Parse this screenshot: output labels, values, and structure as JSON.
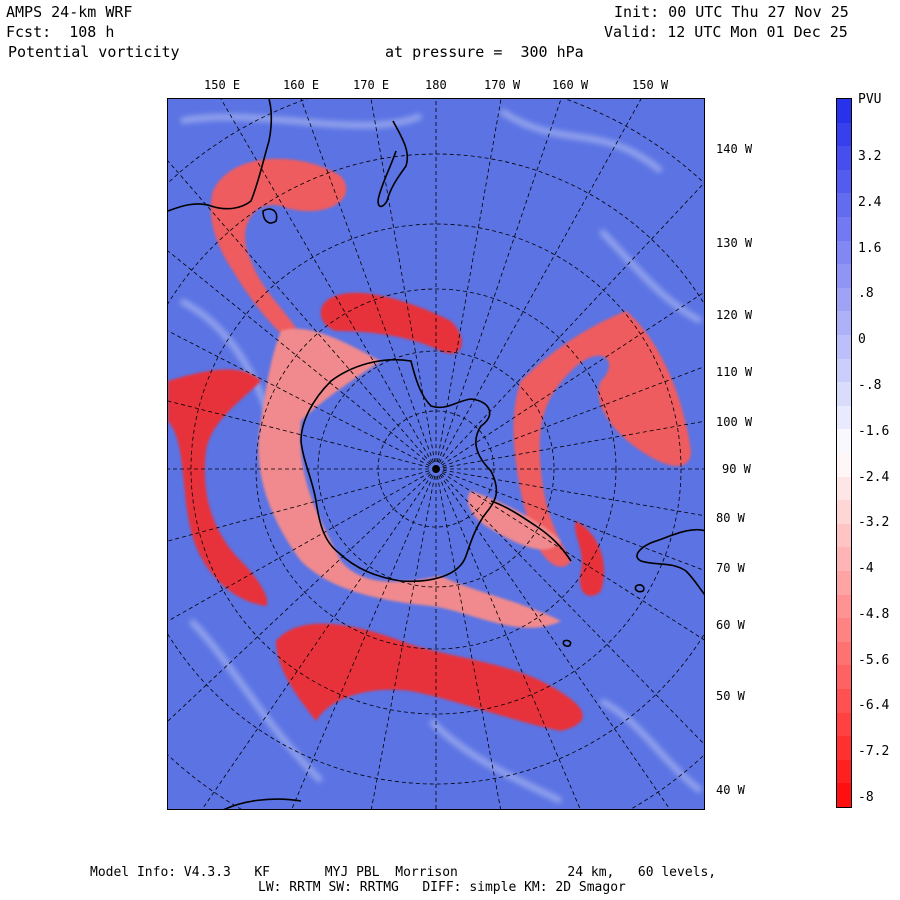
{
  "header": {
    "model": "AMPS 24-km WRF",
    "forecast": "Fcst:  108 h",
    "field": "Potential vorticity",
    "init": "Init: 00 UTC Thu 27 Nov 25",
    "valid": "Valid: 12 UTC Mon 01 Dec 25",
    "level": "at pressure =  300 hPa"
  },
  "map": {
    "projection": "polar stereographic (south pole)",
    "top_lon_labels": [
      "150 E",
      "160 E",
      "170 E",
      "180",
      "170 W",
      "160 W",
      "150 W"
    ],
    "right_lon_labels": [
      "140 W",
      "130 W",
      "120 W",
      "110 W",
      "100 W",
      "90 W",
      "80 W",
      "70 W",
      "60 W",
      "50 W",
      "40 W"
    ],
    "colors": {
      "ocean_blue": "#5b73e3",
      "pv_red": "#e8303a",
      "coast": "#000000"
    }
  },
  "colorbar": {
    "unit": "PVU",
    "ticks": [
      "3.2",
      "2.4",
      "1.6",
      ".8",
      "0",
      "-.8",
      "-1.6",
      "-2.4",
      "-3.2",
      "-4",
      "-4.8",
      "-5.6",
      "-6.4",
      "-7.2",
      "-8"
    ],
    "range": [
      -8,
      4
    ]
  },
  "footer": {
    "line1": "Model Info: V4.3.3   KF       MYJ PBL  Morrison              24 km,   60 levels,",
    "line2": "LW: RRTM SW: RRTMG   DIFF: simple KM: 2D Smagor"
  }
}
